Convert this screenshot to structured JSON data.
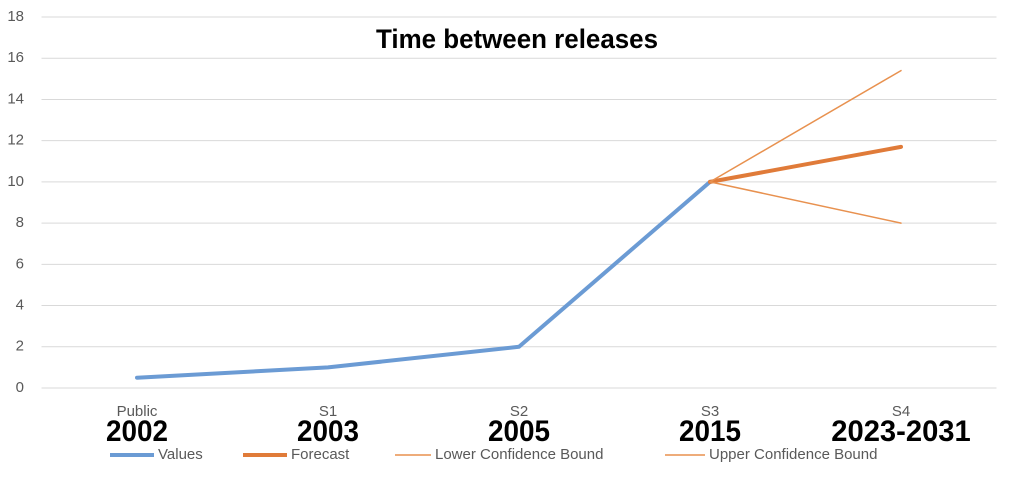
{
  "chart_data": {
    "type": "line",
    "title": "Time between releases",
    "categories": [
      "Public",
      "S1",
      "S2",
      "S3",
      "S4"
    ],
    "annotations": [
      "2002",
      "2003",
      "2005",
      "2015",
      "2023-2031"
    ],
    "series": [
      {
        "name": "Values",
        "color": "#6b9bd4",
        "values": [
          0.5,
          1,
          2,
          10,
          null
        ]
      },
      {
        "name": "Forecast",
        "color": "#e07b39",
        "values": [
          null,
          null,
          null,
          10,
          11.7
        ]
      },
      {
        "name": "Lower Confidence Bound",
        "color": "#e8914f",
        "values": [
          null,
          null,
          null,
          10,
          8
        ]
      },
      {
        "name": "Upper Confidence Bound",
        "color": "#e8914f",
        "values": [
          null,
          null,
          null,
          10,
          15.4
        ]
      }
    ],
    "ylim": [
      0,
      18
    ],
    "yticks": [
      0,
      2,
      4,
      6,
      8,
      10,
      12,
      14,
      16,
      18
    ],
    "grid": true,
    "legend": "bottom"
  }
}
